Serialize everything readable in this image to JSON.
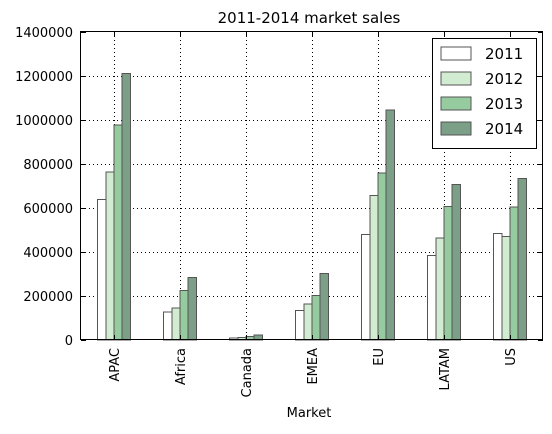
{
  "chart_data": {
    "type": "bar",
    "title": "2011-2014 market sales",
    "xlabel": "Market",
    "ylabel": "",
    "categories": [
      "APAC",
      "Africa",
      "Canada",
      "EMEA",
      "EU",
      "LATAM",
      "US"
    ],
    "series": [
      {
        "name": "2011",
        "color": "#ffffff",
        "values": [
          639000,
          128000,
          8000,
          135000,
          480000,
          385000,
          485000
        ]
      },
      {
        "name": "2012",
        "color": "#d2ecd2",
        "values": [
          763000,
          145000,
          12000,
          163000,
          657000,
          464000,
          471000
        ]
      },
      {
        "name": "2013",
        "color": "#96cba0",
        "values": [
          977000,
          226000,
          17000,
          202000,
          759000,
          607000,
          604000
        ]
      },
      {
        "name": "2014",
        "color": "#7c9f87",
        "values": [
          1211000,
          283000,
          23000,
          303000,
          1045000,
          707000,
          733000
        ]
      }
    ],
    "ylim": [
      0,
      1400000
    ],
    "yticks": [
      "0",
      "200000",
      "400000",
      "600000",
      "800000",
      "1000000",
      "1200000",
      "1400000"
    ],
    "ytick_values": [
      0,
      200000,
      400000,
      600000,
      800000,
      1000000,
      1200000,
      1400000
    ],
    "grid": true,
    "legend_position": "top-right"
  }
}
